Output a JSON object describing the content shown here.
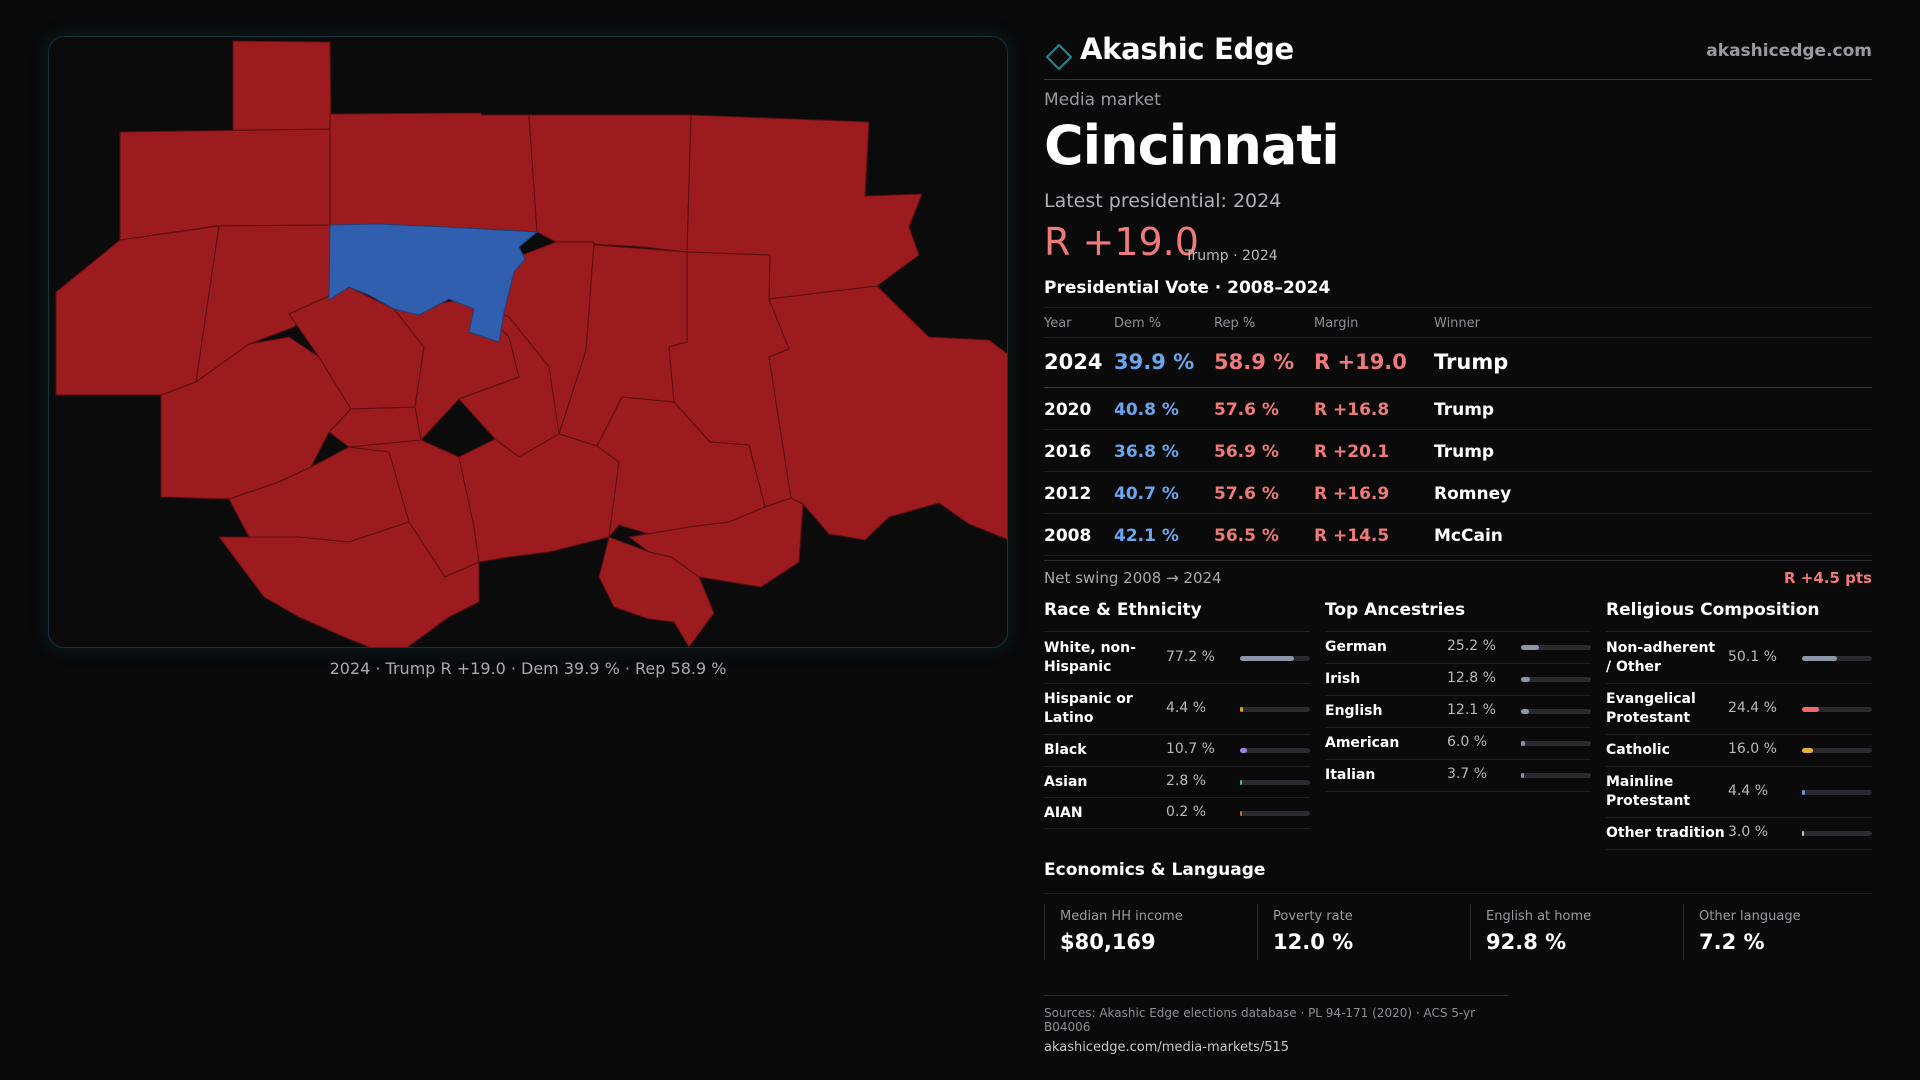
{
  "brand": {
    "name": "Akashic Edge",
    "url": "akashicedge.com"
  },
  "market": {
    "label": "Media market",
    "name": "Cincinnati",
    "latest_label": "Latest presidential: 2024",
    "margin": "R +19.0",
    "margin_sub": "Trump · 2024"
  },
  "map": {
    "caption": "2024 · Trump R +19.0 · Dem 39.9 % · Rep 58.9 %",
    "colors": {
      "rep": "#9b1b1e",
      "dem": "#2f5fae",
      "background": "#0b0b0c",
      "border": "#16343a"
    }
  },
  "vote": {
    "title": "Presidential Vote · 2008–2024",
    "headers": {
      "year": "Year",
      "dem": "Dem %",
      "rep": "Rep %",
      "margin": "Margin",
      "winner": "Winner"
    },
    "rows": [
      {
        "year": "2024",
        "dem": "39.9 %",
        "rep": "58.9 %",
        "margin": "R +19.0",
        "winner": "Trump"
      },
      {
        "year": "2020",
        "dem": "40.8 %",
        "rep": "57.6 %",
        "margin": "R +16.8",
        "winner": "Trump"
      },
      {
        "year": "2016",
        "dem": "36.8 %",
        "rep": "56.9 %",
        "margin": "R +20.1",
        "winner": "Trump"
      },
      {
        "year": "2012",
        "dem": "40.7 %",
        "rep": "57.6 %",
        "margin": "R +16.9",
        "winner": "Romney"
      },
      {
        "year": "2008",
        "dem": "42.1 %",
        "rep": "56.5 %",
        "margin": "R +14.5",
        "winner": "McCain"
      }
    ],
    "swing_label": "Net swing 2008 → 2024",
    "swing_value": "R +4.5 pts"
  },
  "race": {
    "title": "Race & Ethnicity",
    "items": [
      {
        "label": "White, non-Hispanic",
        "value": "77.2 %",
        "fraction": 0.772,
        "color": "#8c96a8"
      },
      {
        "label": "Hispanic or Latino",
        "value": "4.4 %",
        "fraction": 0.044,
        "color": "#e0a030"
      },
      {
        "label": "Black",
        "value": "10.7 %",
        "fraction": 0.107,
        "color": "#9b82e0"
      },
      {
        "label": "Asian",
        "value": "2.8 %",
        "fraction": 0.028,
        "color": "#3ec08a"
      },
      {
        "label": "AIAN",
        "value": "0.2 %",
        "fraction": 0.002,
        "color": "#c06a3e"
      }
    ]
  },
  "ancestry": {
    "title": "Top Ancestries",
    "items": [
      {
        "label": "German",
        "value": "25.2 %",
        "fraction": 0.252,
        "color": "#8c96a8"
      },
      {
        "label": "Irish",
        "value": "12.8 %",
        "fraction": 0.128,
        "color": "#8c96a8"
      },
      {
        "label": "English",
        "value": "12.1 %",
        "fraction": 0.121,
        "color": "#8c96a8"
      },
      {
        "label": "American",
        "value": "6.0 %",
        "fraction": 0.06,
        "color": "#8c96a8"
      },
      {
        "label": "Italian",
        "value": "3.7 %",
        "fraction": 0.037,
        "color": "#8c96a8"
      }
    ]
  },
  "religion": {
    "title": "Religious Composition",
    "items": [
      {
        "label": "Non-adherent / Other",
        "value": "50.1 %",
        "fraction": 0.501,
        "color": "#8c96a8"
      },
      {
        "label": "Evangelical Protestant",
        "value": "24.4 %",
        "fraction": 0.244,
        "color": "#ef6a6a"
      },
      {
        "label": "Catholic",
        "value": "16.0 %",
        "fraction": 0.16,
        "color": "#e8b030"
      },
      {
        "label": "Mainline Protestant",
        "value": "4.4 %",
        "fraction": 0.044,
        "color": "#5a9ae0"
      },
      {
        "label": "Other tradition",
        "value": "3.0 %",
        "fraction": 0.03,
        "color": "#c8c8cc"
      }
    ]
  },
  "economics": {
    "title": "Economics & Language",
    "items": [
      {
        "label": "Median HH income",
        "value": "$80,169"
      },
      {
        "label": "Poverty rate",
        "value": "12.0 %"
      },
      {
        "label": "English at home",
        "value": "92.8 %"
      },
      {
        "label": "Other language",
        "value": "7.2 %"
      }
    ]
  },
  "sources": {
    "line1": "Sources: Akashic Edge elections database · PL 94-171 (2020) · ACS 5-yr B04006",
    "line2": "akashicedge.com/media-markets/515"
  }
}
